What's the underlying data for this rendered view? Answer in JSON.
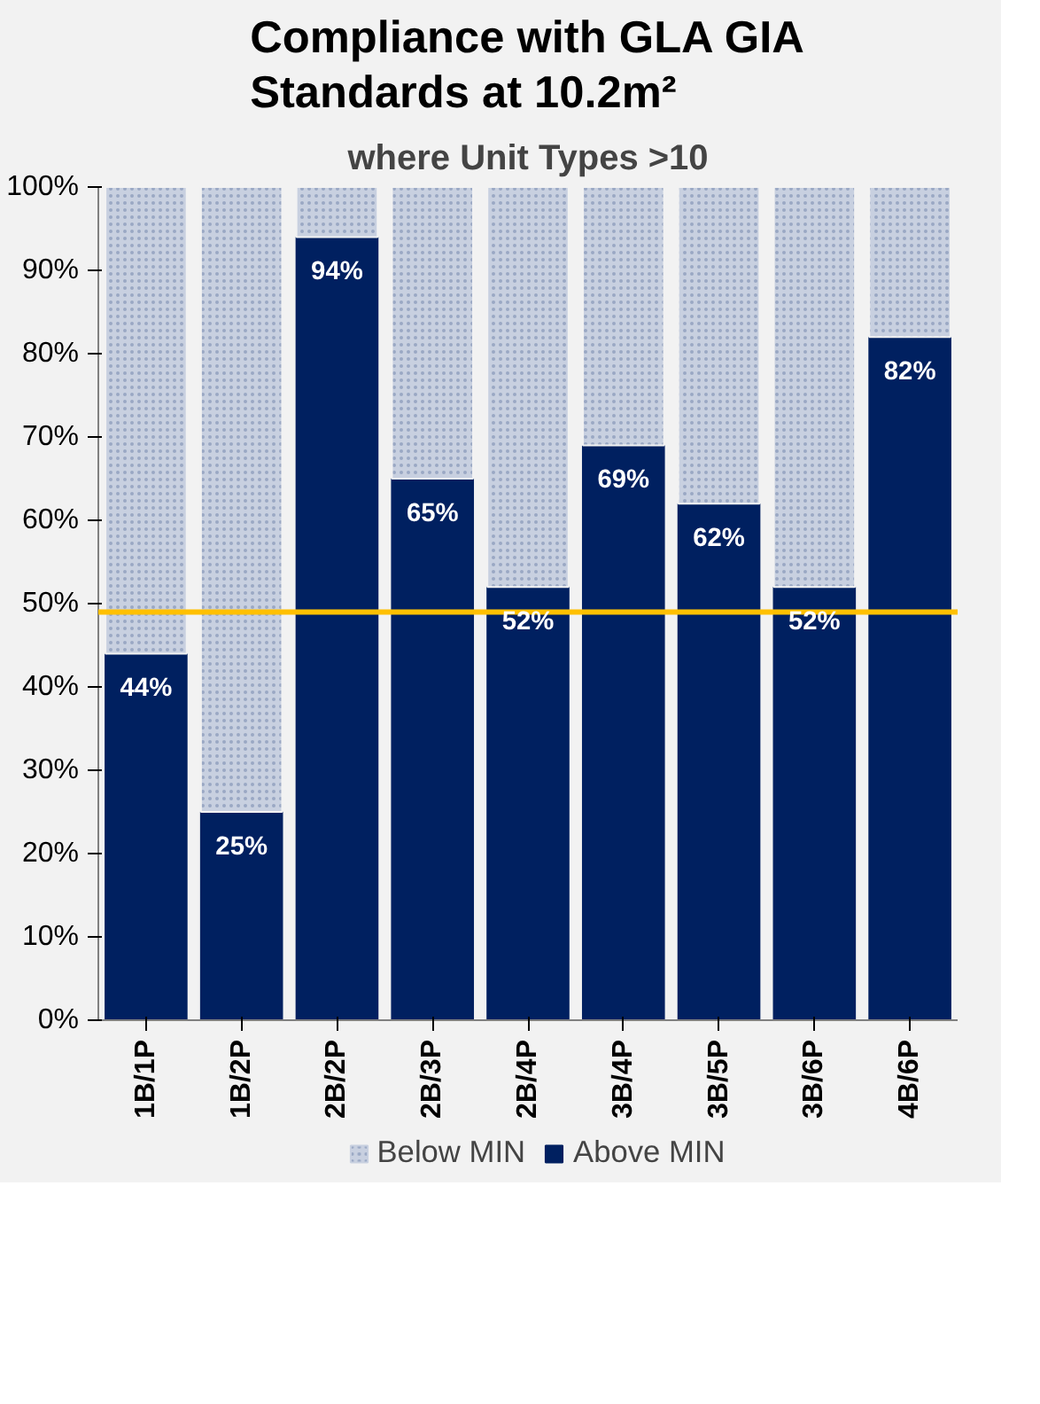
{
  "chart_data": {
    "type": "bar",
    "title": "Compliance with GLA GIA Standards at 10.2m²",
    "subtitle": "where Unit Types >10",
    "categories": [
      "1B/1P",
      "1B/2P",
      "2B/2P",
      "2B/3P",
      "2B/4P",
      "3B/4P",
      "3B/5P",
      "3B/6P",
      "4B/6P"
    ],
    "stacked": true,
    "series": [
      {
        "name": "Above MIN",
        "color": "#002060",
        "values": [
          44,
          25,
          94,
          65,
          52,
          69,
          62,
          52,
          82
        ],
        "value_labels": [
          "44%",
          "25%",
          "94%",
          "65%",
          "52%",
          "69%",
          "62%",
          "52%",
          "82%"
        ]
      },
      {
        "name": "Below MIN",
        "color": "#c8d0e0",
        "values": [
          56,
          75,
          6,
          35,
          48,
          31,
          38,
          48,
          18
        ]
      }
    ],
    "ylim": [
      0,
      100
    ],
    "yticks": [
      {
        "value": 0,
        "label": "0%"
      },
      {
        "value": 10,
        "label": "10%"
      },
      {
        "value": 20,
        "label": "20%"
      },
      {
        "value": 30,
        "label": "30%"
      },
      {
        "value": 40,
        "label": "40%"
      },
      {
        "value": 50,
        "label": "50%"
      },
      {
        "value": 60,
        "label": "60%"
      },
      {
        "value": 70,
        "label": "70%"
      },
      {
        "value": 80,
        "label": "80%"
      },
      {
        "value": 90,
        "label": "90%"
      },
      {
        "value": 100,
        "label": "100%"
      }
    ],
    "ref_lines": [
      {
        "axis": "y",
        "value": 49,
        "color": "#ffc000"
      }
    ],
    "grid": false,
    "legend": "bottom"
  }
}
